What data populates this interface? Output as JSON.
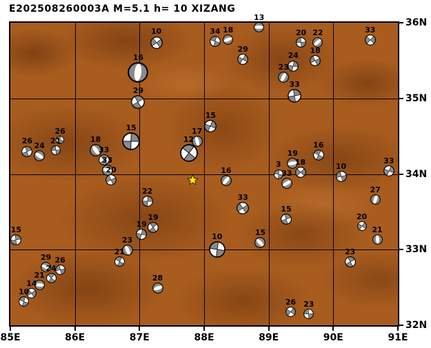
{
  "title": "E202508260003A M=5.1 h= 10 XIZANG",
  "map": {
    "lon_min": 85,
    "lon_max": 91,
    "lat_min": 32,
    "lat_max": 36,
    "x_ticks": [
      {
        "lon": 85,
        "label": "85E"
      },
      {
        "lon": 86,
        "label": "86E"
      },
      {
        "lon": 87,
        "label": "87E"
      },
      {
        "lon": 88,
        "label": "88E"
      },
      {
        "lon": 89,
        "label": "89E"
      },
      {
        "lon": 90,
        "label": "90E"
      },
      {
        "lon": 91,
        "label": "91E"
      }
    ],
    "y_ticks": [
      {
        "lat": 36,
        "label": "36N"
      },
      {
        "lat": 35,
        "label": "35N"
      },
      {
        "lat": 34,
        "label": "34N"
      },
      {
        "lat": 33,
        "label": "33N"
      },
      {
        "lat": 32,
        "label": "32N"
      }
    ],
    "colors": {
      "land": "#a85c1e",
      "land_shadow": "#5f2c0a",
      "ball": "#8a8a8a",
      "ball_white": "#ffffff",
      "frame": "#000000",
      "star": "#ffec00"
    },
    "star": {
      "lon": 87.82,
      "lat": 33.92
    },
    "events": [
      {
        "depth": 13,
        "lon": 88.85,
        "lat": 35.94,
        "size": 15
      },
      {
        "depth": 10,
        "lon": 87.26,
        "lat": 35.74,
        "size": 18
      },
      {
        "depth": 34,
        "lon": 88.17,
        "lat": 35.75,
        "size": 16
      },
      {
        "depth": 18,
        "lon": 88.37,
        "lat": 35.78,
        "size": 15
      },
      {
        "depth": 29,
        "lon": 88.6,
        "lat": 35.52,
        "size": 16
      },
      {
        "depth": 20,
        "lon": 89.5,
        "lat": 35.74,
        "size": 15
      },
      {
        "depth": 22,
        "lon": 89.76,
        "lat": 35.74,
        "size": 15
      },
      {
        "depth": 24,
        "lon": 89.38,
        "lat": 35.43,
        "size": 16
      },
      {
        "depth": 18,
        "lon": 89.72,
        "lat": 35.5,
        "size": 16
      },
      {
        "depth": 23,
        "lon": 89.23,
        "lat": 35.28,
        "size": 16
      },
      {
        "depth": 33,
        "lon": 89.4,
        "lat": 35.03,
        "size": 20
      },
      {
        "depth": 33,
        "lon": 90.57,
        "lat": 35.77,
        "size": 16
      },
      {
        "depth": 16,
        "lon": 86.98,
        "lat": 35.34,
        "size": 30
      },
      {
        "depth": 29,
        "lon": 86.98,
        "lat": 34.95,
        "size": 20
      },
      {
        "depth": 15,
        "lon": 88.1,
        "lat": 34.63,
        "size": 18
      },
      {
        "depth": 17,
        "lon": 87.89,
        "lat": 34.43,
        "size": 16
      },
      {
        "depth": 12,
        "lon": 87.76,
        "lat": 34.28,
        "size": 26
      },
      {
        "depth": 15,
        "lon": 86.87,
        "lat": 34.43,
        "size": 26
      },
      {
        "depth": 18,
        "lon": 86.32,
        "lat": 34.31,
        "size": 18
      },
      {
        "depth": 26,
        "lon": 85.77,
        "lat": 34.45,
        "size": 12
      },
      {
        "depth": 26,
        "lon": 85.26,
        "lat": 34.3,
        "size": 16
      },
      {
        "depth": 24,
        "lon": 85.45,
        "lat": 34.24,
        "size": 16
      },
      {
        "depth": 21,
        "lon": 85.7,
        "lat": 34.31,
        "size": 14
      },
      {
        "depth": 33,
        "lon": 86.45,
        "lat": 34.19,
        "size": 16
      },
      {
        "depth": 33,
        "lon": 86.5,
        "lat": 34.05,
        "size": 16
      },
      {
        "depth": 20,
        "lon": 86.56,
        "lat": 33.92,
        "size": 16
      },
      {
        "depth": 16,
        "lon": 89.77,
        "lat": 34.25,
        "size": 16
      },
      {
        "depth": 19,
        "lon": 89.37,
        "lat": 34.14,
        "size": 16
      },
      {
        "depth": 18,
        "lon": 89.49,
        "lat": 34.02,
        "size": 16
      },
      {
        "depth": 3,
        "lon": 89.15,
        "lat": 34.0,
        "size": 14
      },
      {
        "depth": 33,
        "lon": 89.28,
        "lat": 33.88,
        "size": 16
      },
      {
        "depth": 33,
        "lon": 90.86,
        "lat": 34.04,
        "size": 16
      },
      {
        "depth": 10,
        "lon": 90.12,
        "lat": 33.97,
        "size": 16
      },
      {
        "depth": 16,
        "lon": 88.34,
        "lat": 33.91,
        "size": 16
      },
      {
        "depth": 22,
        "lon": 87.12,
        "lat": 33.64,
        "size": 16
      },
      {
        "depth": 33,
        "lon": 88.6,
        "lat": 33.55,
        "size": 18
      },
      {
        "depth": 27,
        "lon": 90.65,
        "lat": 33.66,
        "size": 15
      },
      {
        "depth": 15,
        "lon": 89.27,
        "lat": 33.4,
        "size": 16
      },
      {
        "depth": 20,
        "lon": 90.44,
        "lat": 33.31,
        "size": 14
      },
      {
        "depth": 21,
        "lon": 90.68,
        "lat": 33.13,
        "size": 15
      },
      {
        "depth": 19,
        "lon": 87.21,
        "lat": 33.29,
        "size": 16
      },
      {
        "depth": 19,
        "lon": 87.03,
        "lat": 33.2,
        "size": 16
      },
      {
        "depth": 23,
        "lon": 86.81,
        "lat": 32.99,
        "size": 16
      },
      {
        "depth": 21,
        "lon": 86.69,
        "lat": 32.84,
        "size": 15
      },
      {
        "depth": 15,
        "lon": 85.09,
        "lat": 33.13,
        "size": 16
      },
      {
        "depth": 15,
        "lon": 88.87,
        "lat": 33.09,
        "size": 16
      },
      {
        "depth": 10,
        "lon": 88.2,
        "lat": 33.0,
        "size": 24
      },
      {
        "depth": 23,
        "lon": 90.26,
        "lat": 32.84,
        "size": 16
      },
      {
        "depth": 29,
        "lon": 85.55,
        "lat": 32.77,
        "size": 15
      },
      {
        "depth": 26,
        "lon": 85.77,
        "lat": 32.73,
        "size": 15
      },
      {
        "depth": 24,
        "lon": 85.63,
        "lat": 32.62,
        "size": 15
      },
      {
        "depth": 21,
        "lon": 85.45,
        "lat": 32.53,
        "size": 15
      },
      {
        "depth": 14,
        "lon": 85.33,
        "lat": 32.42,
        "size": 15
      },
      {
        "depth": 10,
        "lon": 85.21,
        "lat": 32.31,
        "size": 15
      },
      {
        "depth": 28,
        "lon": 87.28,
        "lat": 32.49,
        "size": 16
      },
      {
        "depth": 26,
        "lon": 89.34,
        "lat": 32.18,
        "size": 15
      },
      {
        "depth": 23,
        "lon": 89.62,
        "lat": 32.15,
        "size": 15
      }
    ]
  }
}
